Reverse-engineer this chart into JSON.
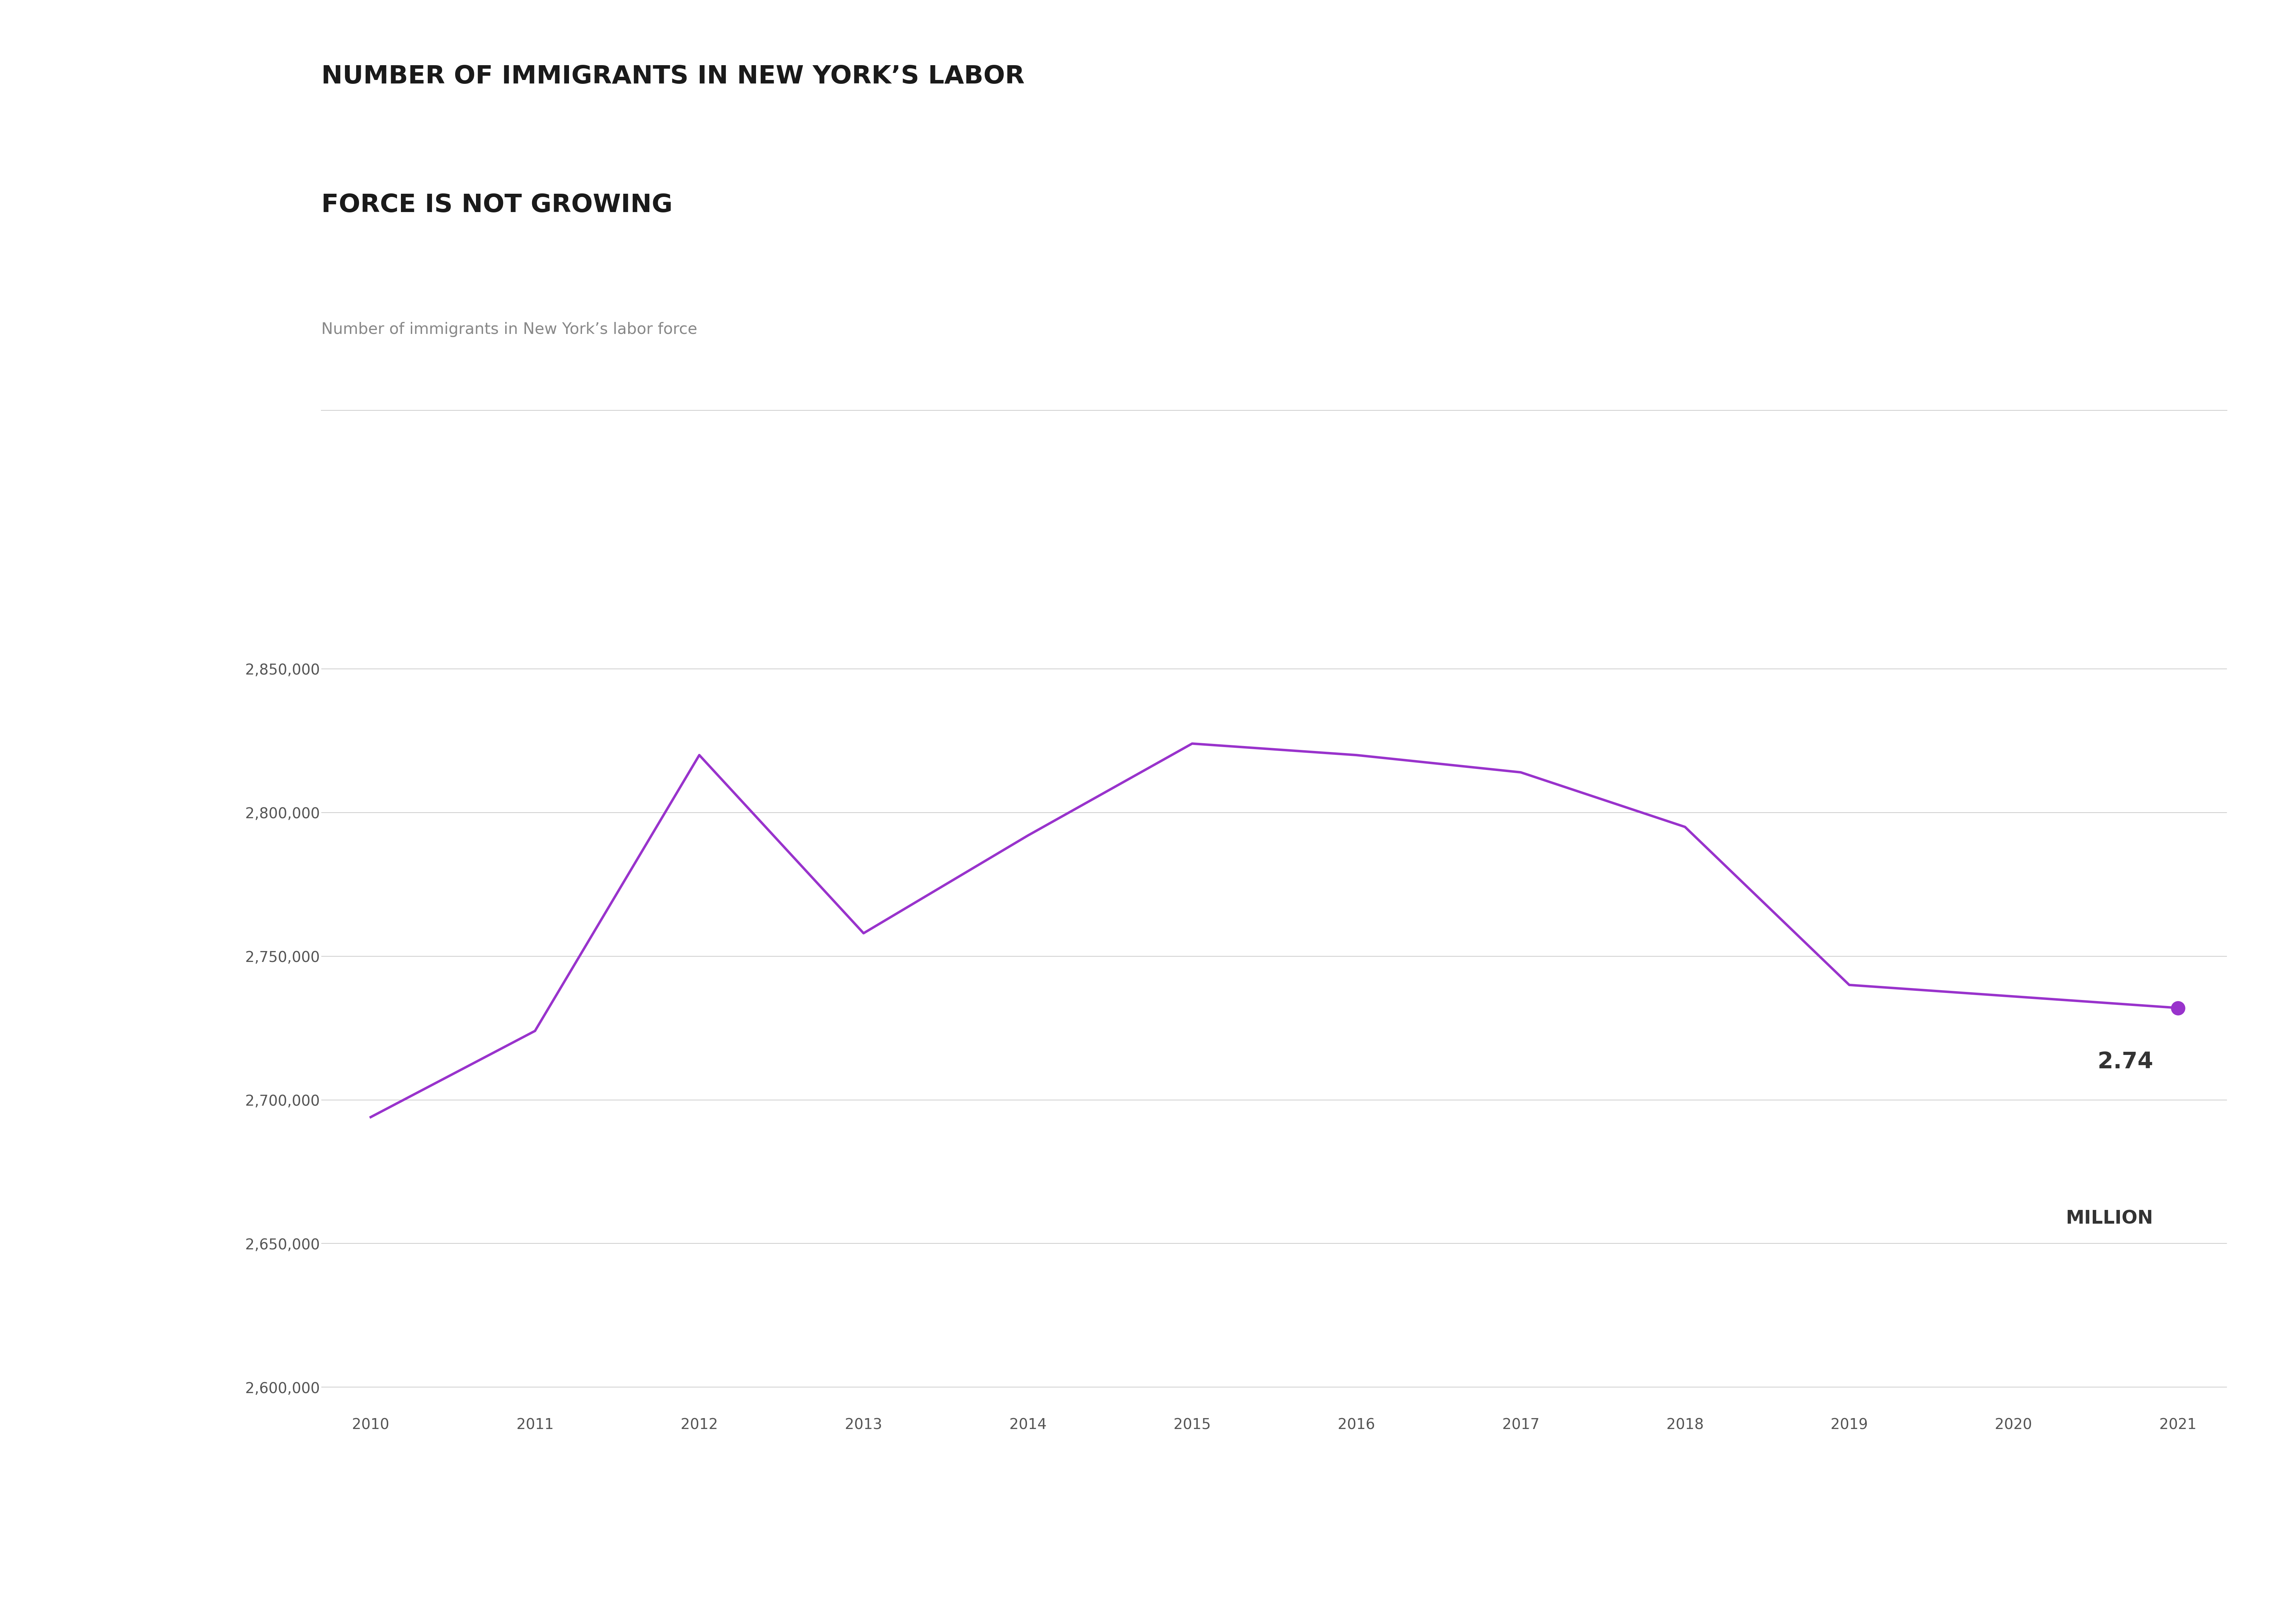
{
  "title_line1": "NUMBER OF IMMIGRANTS IN NEW YORK’S LABOR",
  "title_line2": "FORCE IS NOT GROWING",
  "subtitle": "Number of immigrants in New York’s labor force",
  "years": [
    2010,
    2011,
    2012,
    2013,
    2014,
    2015,
    2016,
    2017,
    2018,
    2019,
    2020,
    2021
  ],
  "values": [
    2694000,
    2724000,
    2820000,
    2758000,
    2792000,
    2824000,
    2820000,
    2814000,
    2795000,
    2740000,
    2736000,
    2732000
  ],
  "line_color": "#9933cc",
  "marker_color": "#9933cc",
  "background_color": "#ffffff",
  "annotation_line1": "2.74",
  "annotation_line2": "MILLION",
  "annotation_color": "#333333",
  "ylim_min": 2590000,
  "ylim_max": 2870000,
  "ytick_values": [
    2600000,
    2650000,
    2700000,
    2750000,
    2800000,
    2850000
  ],
  "title_fontsize": 52,
  "subtitle_fontsize": 32,
  "tick_fontsize": 30,
  "annotation_fontsize_large": 46,
  "annotation_fontsize_small": 38,
  "grid_color": "#cccccc",
  "title_color": "#1a1a1a",
  "subtitle_color": "#888888",
  "tick_color": "#555555",
  "figwidth": 65.17,
  "figheight": 45.68,
  "dpi": 100
}
